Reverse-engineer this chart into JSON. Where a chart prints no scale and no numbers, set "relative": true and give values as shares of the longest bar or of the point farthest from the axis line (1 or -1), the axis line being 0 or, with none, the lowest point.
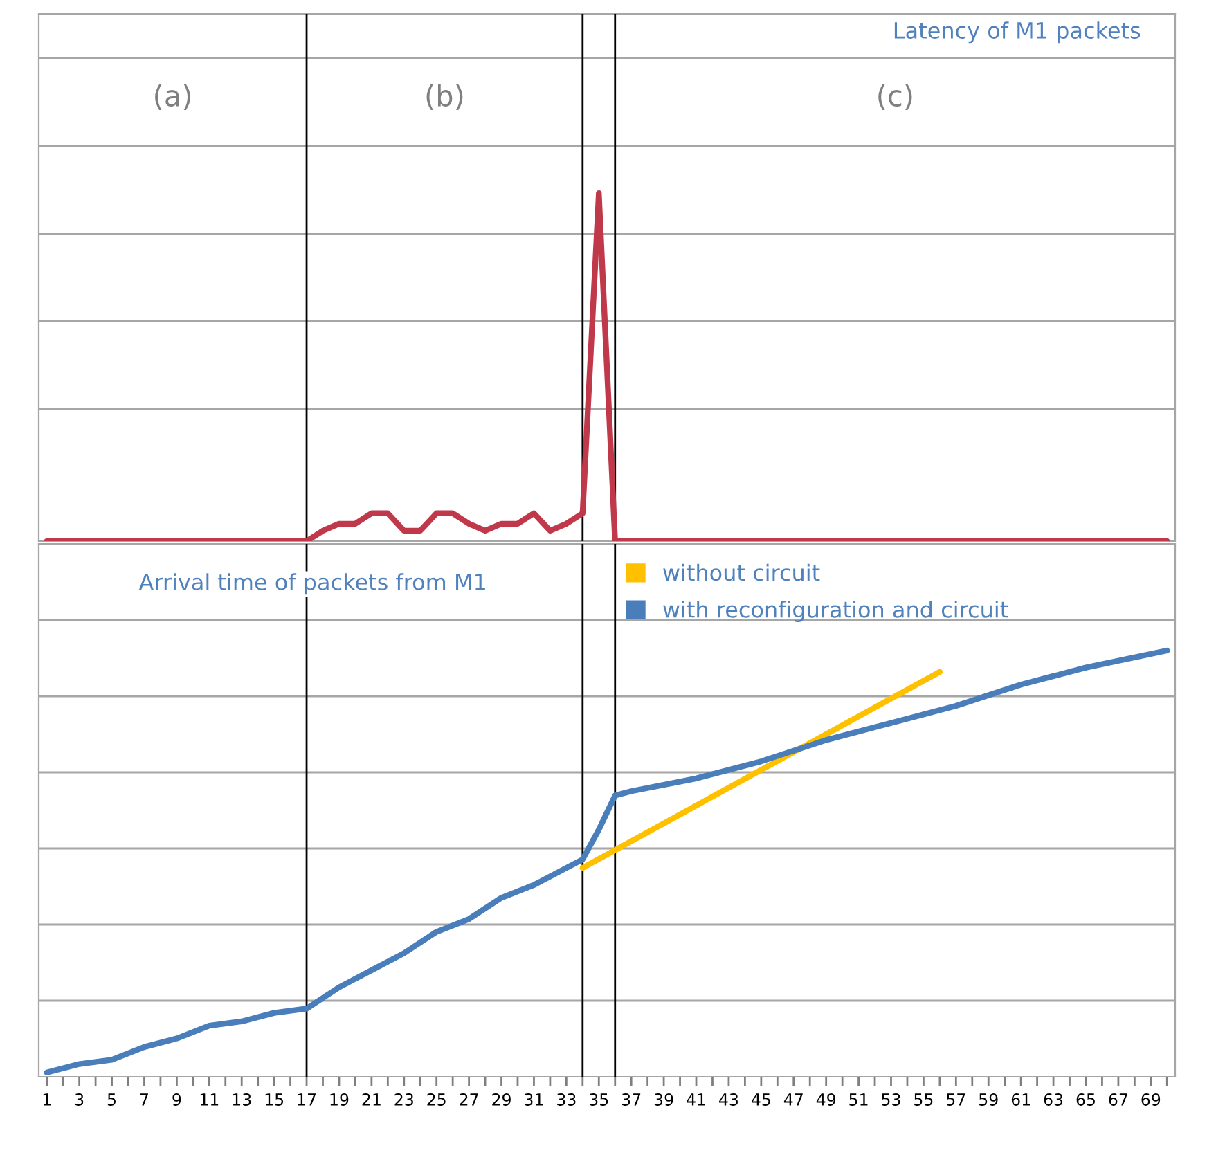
{
  "chart_data": [
    {
      "type": "line",
      "title": "Latency of M1 packets",
      "relative": true,
      "tick_labels": false,
      "grid": "y",
      "marker": "none",
      "line_style": "solid",
      "xlim": [
        0.5,
        70.5
      ],
      "annotations": [
        "(a)",
        "(b)",
        "(c)"
      ],
      "ref_lines": [
        {
          "axis": "x",
          "value": 17,
          "color": "#000000"
        },
        {
          "axis": "x",
          "value": 34,
          "color": "#000000"
        },
        {
          "axis": "x",
          "value": 36,
          "color": "#000000"
        }
      ],
      "series": [
        {
          "color": "#c0394b",
          "x": [
            1,
            2,
            3,
            4,
            5,
            6,
            7,
            8,
            9,
            10,
            11,
            12,
            13,
            14,
            15,
            16,
            17,
            18,
            19,
            20,
            21,
            22,
            23,
            24,
            25,
            26,
            27,
            28,
            29,
            30,
            31,
            32,
            33,
            34,
            35,
            36,
            37,
            38,
            39,
            40,
            41,
            42,
            43,
            44,
            45,
            46,
            47,
            48,
            49,
            50,
            51,
            52,
            53,
            54,
            55,
            56,
            57,
            58,
            59,
            60,
            61,
            62,
            63,
            64,
            65,
            66,
            67,
            68,
            69,
            70
          ],
          "values": [
            0,
            0,
            0,
            0,
            0,
            0,
            0,
            0,
            0,
            0,
            0,
            0,
            0,
            0,
            0,
            0,
            0,
            0.03,
            0.05,
            0.05,
            0.08,
            0.08,
            0.03,
            0.03,
            0.08,
            0.08,
            0.05,
            0.03,
            0.05,
            0.05,
            0.08,
            0.03,
            0.05,
            0.08,
            1,
            0,
            0,
            0,
            0,
            0,
            0,
            0,
            0,
            0,
            0,
            0,
            0,
            0,
            0,
            0,
            0,
            0,
            0,
            0,
            0,
            0,
            0,
            0,
            0,
            0,
            0,
            0,
            0,
            0,
            0,
            0,
            0,
            0,
            0,
            0
          ]
        }
      ]
    },
    {
      "type": "line",
      "title": "Arrival time of packets from M1",
      "relative": true,
      "grid": "y",
      "marker": "none",
      "line_style": "solid",
      "legend": "top",
      "xlim": [
        0.5,
        70.5
      ],
      "xticks": [
        1,
        {
          "value": 2,
          "label": null
        },
        3,
        {
          "value": 4,
          "label": null
        },
        5,
        {
          "value": 6,
          "label": null
        },
        7,
        {
          "value": 8,
          "label": null
        },
        9,
        {
          "value": 10,
          "label": null
        },
        11,
        {
          "value": 12,
          "label": null
        },
        13,
        {
          "value": 14,
          "label": null
        },
        15,
        {
          "value": 16,
          "label": null
        },
        17,
        {
          "value": 18,
          "label": null
        },
        19,
        {
          "value": 20,
          "label": null
        },
        21,
        {
          "value": 22,
          "label": null
        },
        23,
        {
          "value": 24,
          "label": null
        },
        25,
        {
          "value": 26,
          "label": null
        },
        27,
        {
          "value": 28,
          "label": null
        },
        29,
        {
          "value": 30,
          "label": null
        },
        31,
        {
          "value": 32,
          "label": null
        },
        33,
        {
          "value": 34,
          "label": null
        },
        35,
        {
          "value": 36,
          "label": null
        },
        37,
        {
          "value": 38,
          "label": null
        },
        39,
        {
          "value": 40,
          "label": null
        },
        41,
        {
          "value": 42,
          "label": null
        },
        43,
        {
          "value": 44,
          "label": null
        },
        45,
        {
          "value": 46,
          "label": null
        },
        47,
        {
          "value": 48,
          "label": null
        },
        49,
        {
          "value": 50,
          "label": null
        },
        51,
        {
          "value": 52,
          "label": null
        },
        53,
        {
          "value": 54,
          "label": null
        },
        55,
        {
          "value": 56,
          "label": null
        },
        57,
        {
          "value": 58,
          "label": null
        },
        59,
        {
          "value": 60,
          "label": null
        },
        61,
        {
          "value": 62,
          "label": null
        },
        63,
        {
          "value": 64,
          "label": null
        },
        65,
        {
          "value": 66,
          "label": null
        },
        67,
        {
          "value": 68,
          "label": null
        },
        69,
        {
          "value": 70,
          "label": null
        }
      ],
      "ref_lines": [
        {
          "axis": "x",
          "value": 17,
          "color": "#000000"
        },
        {
          "axis": "x",
          "value": 34,
          "color": "#000000"
        },
        {
          "axis": "x",
          "value": 36,
          "color": "#000000"
        }
      ],
      "series": [
        {
          "name": "without circuit",
          "color": "#ffc000",
          "x": [
            34,
            56
          ],
          "values": [
            0.49,
            0.95
          ]
        },
        {
          "name": "with reconfiguration and circuit",
          "color": "#4a7ebb",
          "x": [
            1,
            3,
            5,
            7,
            9,
            11,
            13,
            15,
            17,
            19,
            21,
            23,
            25,
            27,
            29,
            31,
            33,
            34,
            35,
            36,
            37,
            41,
            45,
            49,
            53,
            57,
            61,
            65,
            70
          ],
          "values": [
            0.01,
            0.03,
            0.04,
            0.07,
            0.09,
            0.12,
            0.13,
            0.15,
            0.16,
            0.21,
            0.25,
            0.29,
            0.34,
            0.37,
            0.42,
            0.45,
            0.49,
            0.51,
            0.58,
            0.66,
            0.67,
            0.7,
            0.74,
            0.79,
            0.83,
            0.87,
            0.92,
            0.96,
            1.0
          ]
        }
      ]
    }
  ]
}
